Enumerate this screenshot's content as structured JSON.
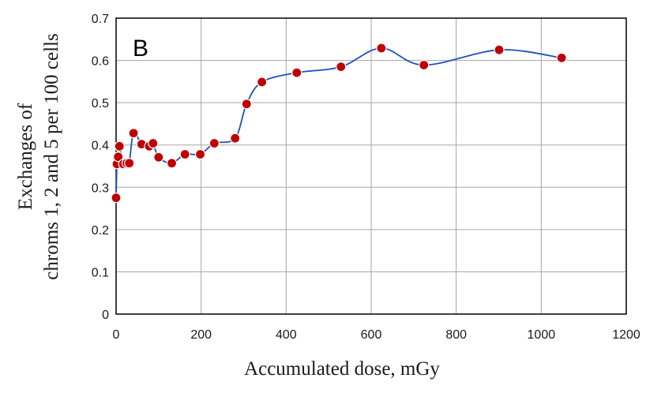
{
  "chart_data": {
    "type": "scatter",
    "panel_label": "B",
    "xlabel": "Accumulated dose, mGy",
    "ylabel_lines": [
      "Exchanges of",
      "chroms 1, 2 and 5 per 100 cells"
    ],
    "xlim": [
      0,
      1200
    ],
    "ylim": [
      0,
      0.7
    ],
    "x_ticks": [
      0,
      200,
      400,
      600,
      800,
      1000,
      1200
    ],
    "y_ticks": [
      0,
      0.1,
      0.2,
      0.3,
      0.4,
      0.5,
      0.6,
      0.7
    ],
    "x_tick_labels": [
      "0",
      "200",
      "400",
      "600",
      "800",
      "1000",
      "1200"
    ],
    "y_tick_labels": [
      "0",
      "0.1",
      "0.2",
      "0.3",
      "0.4",
      "0.5",
      "0.6",
      "0.7"
    ],
    "grid": true,
    "smoothed_line": true,
    "colors": {
      "marker": "#c00000",
      "line": "#1f4fbf",
      "grid": "#a6a6a6",
      "axis": "#000000"
    },
    "series": [
      {
        "x": [
          0,
          2,
          5,
          8,
          17,
          25,
          31,
          41,
          60,
          78,
          87,
          100,
          131,
          162,
          198,
          231,
          280,
          307,
          343,
          425,
          529,
          624,
          724,
          901,
          1048
        ],
        "y": [
          0.275,
          0.355,
          0.372,
          0.397,
          0.355,
          0.357,
          0.357,
          0.428,
          0.402,
          0.397,
          0.404,
          0.371,
          0.357,
          0.378,
          0.378,
          0.404,
          0.416,
          0.497,
          0.549,
          0.571,
          0.585,
          0.629,
          0.589,
          0.625,
          0.606
        ]
      }
    ]
  }
}
